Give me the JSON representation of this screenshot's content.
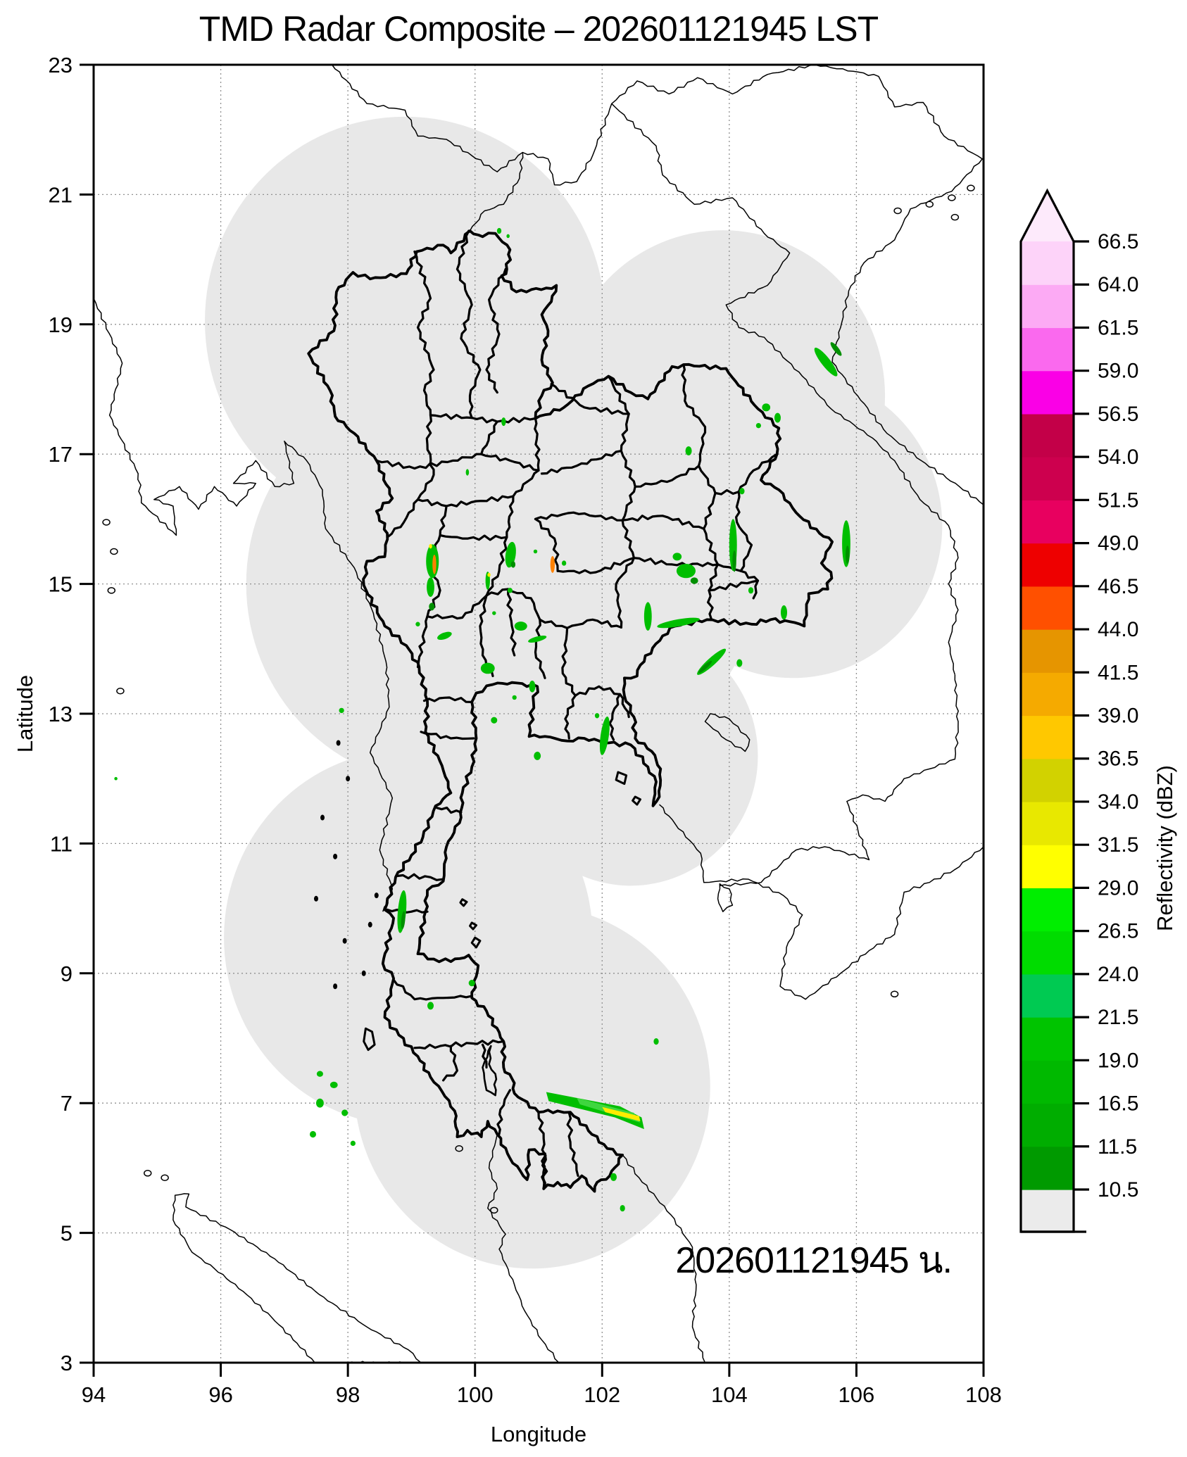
{
  "title": "TMD Radar Composite – 202601121945 LST",
  "timestamp_annotation": "202601121945 น.",
  "axes": {
    "xlabel": "Longitude",
    "ylabel": "Latitude",
    "xlim": [
      94,
      108
    ],
    "ylim": [
      3,
      23
    ],
    "x_ticks": [
      94,
      96,
      98,
      100,
      102,
      104,
      106,
      108
    ],
    "y_ticks": [
      3,
      5,
      7,
      9,
      11,
      13,
      15,
      17,
      19,
      21,
      23
    ],
    "grid_style": "dashed"
  },
  "colorbar": {
    "label": "Reflectivity (dBZ)",
    "ticks": [
      10.5,
      11.5,
      16.5,
      19.0,
      21.5,
      24.0,
      26.5,
      29.0,
      31.5,
      34.0,
      36.5,
      39.0,
      41.5,
      44.0,
      46.5,
      49.0,
      51.5,
      54.0,
      56.5,
      59.0,
      61.5,
      64.0,
      66.5
    ],
    "segment_colors_bottom_to_top": [
      "#ebebeb",
      "#009a00",
      "#00ad00",
      "#00b900",
      "#00c400",
      "#00ca52",
      "#00dc00",
      "#00ee00",
      "#ffff00",
      "#e8e800",
      "#d2d200",
      "#ffc800",
      "#f5aa00",
      "#e69500",
      "#ff5000",
      "#ee0000",
      "#e8005f",
      "#cd004e",
      "#c30048",
      "#fa00e6",
      "#fa69ee",
      "#fcaaf4",
      "#fdd3f9"
    ],
    "arrow_color": "#fdeafb"
  },
  "chart_data": {
    "type": "radar-composite-map",
    "title": "TMD Radar Composite – 202601121945 LST",
    "xlabel": "Longitude",
    "ylabel": "Latitude",
    "xlim": [
      94,
      108
    ],
    "ylim": [
      3,
      23
    ],
    "colorbar_label": "Reflectivity (dBZ)",
    "coverage_color": "#e8e8e8",
    "echo_colors": {
      "g": "#00be00",
      "d": "#008f00",
      "l": "#3fd63f",
      "y": "#ffec00",
      "o": "#ff8200"
    },
    "echo_dbz": {
      "g": 20,
      "d": 12,
      "l": 24,
      "y": 30,
      "o": 42
    },
    "coverage_circles_lon_lat_rdeg": [
      [
        98.9,
        19.05,
        3.15
      ],
      [
        103.9,
        17.9,
        2.55
      ],
      [
        105.0,
        15.9,
        2.35
      ],
      [
        99.5,
        15.0,
        3.1
      ],
      [
        102.3,
        14.75,
        2.05
      ],
      [
        100.4,
        12.9,
        2.35
      ],
      [
        102.45,
        12.35,
        2.0
      ],
      [
        98.95,
        9.55,
        2.9
      ],
      [
        100.9,
        7.25,
        2.8
      ]
    ],
    "echoes_lon_lat_w_h_rot_color": [
      [
        105.52,
        18.42,
        0.14,
        0.55,
        -38,
        "g"
      ],
      [
        105.68,
        18.62,
        0.08,
        0.26,
        -38,
        "d"
      ],
      [
        104.58,
        17.72,
        0.13,
        0.12,
        0,
        "g"
      ],
      [
        104.76,
        17.56,
        0.1,
        0.15,
        0,
        "g"
      ],
      [
        104.46,
        17.44,
        0.08,
        0.08,
        0,
        "g"
      ],
      [
        103.36,
        17.05,
        0.1,
        0.14,
        0,
        "g"
      ],
      [
        104.2,
        16.43,
        0.08,
        0.1,
        0,
        "g"
      ],
      [
        100.45,
        17.5,
        0.07,
        0.13,
        0,
        "g"
      ],
      [
        99.88,
        16.72,
        0.05,
        0.1,
        0,
        "g"
      ],
      [
        100.38,
        20.44,
        0.07,
        0.09,
        0,
        "g"
      ],
      [
        100.52,
        20.36,
        0.05,
        0.06,
        0,
        "g"
      ],
      [
        105.84,
        15.62,
        0.13,
        0.72,
        0,
        "g"
      ],
      [
        105.86,
        15.45,
        0.06,
        0.28,
        0,
        "d"
      ],
      [
        104.06,
        15.6,
        0.12,
        0.8,
        0,
        "g"
      ],
      [
        104.08,
        15.35,
        0.06,
        0.33,
        0,
        "d"
      ],
      [
        103.32,
        15.2,
        0.3,
        0.22,
        0,
        "g"
      ],
      [
        103.18,
        15.42,
        0.14,
        0.12,
        0,
        "g"
      ],
      [
        103.45,
        15.05,
        0.12,
        0.1,
        0,
        "d"
      ],
      [
        104.86,
        14.56,
        0.1,
        0.22,
        0,
        "g"
      ],
      [
        104.34,
        14.9,
        0.08,
        0.1,
        0,
        "g"
      ],
      [
        102.72,
        14.5,
        0.12,
        0.44,
        0,
        "g"
      ],
      [
        103.2,
        14.4,
        0.68,
        0.11,
        -10,
        "g"
      ],
      [
        103.72,
        13.8,
        0.6,
        0.12,
        -42,
        "g"
      ],
      [
        103.62,
        13.72,
        0.28,
        0.06,
        -42,
        "d"
      ],
      [
        104.16,
        13.78,
        0.09,
        0.12,
        0,
        "g"
      ],
      [
        102.04,
        12.66,
        0.13,
        0.6,
        8,
        "g"
      ],
      [
        101.92,
        12.97,
        0.07,
        0.08,
        0,
        "g"
      ],
      [
        99.33,
        15.35,
        0.2,
        0.52,
        0,
        "g"
      ],
      [
        99.36,
        15.3,
        0.06,
        0.3,
        0,
        "o"
      ],
      [
        99.3,
        15.58,
        0.05,
        0.07,
        0,
        "y"
      ],
      [
        99.3,
        14.95,
        0.12,
        0.3,
        0,
        "g"
      ],
      [
        99.32,
        14.65,
        0.09,
        0.12,
        0,
        "d"
      ],
      [
        100.56,
        15.45,
        0.16,
        0.4,
        8,
        "g"
      ],
      [
        100.6,
        15.3,
        0.07,
        0.1,
        0,
        "d"
      ],
      [
        100.2,
        15.05,
        0.07,
        0.28,
        0,
        "g"
      ],
      [
        100.22,
        15.14,
        0.05,
        0.06,
        0,
        "y"
      ],
      [
        101.22,
        15.3,
        0.07,
        0.26,
        0,
        "o"
      ],
      [
        101.4,
        15.32,
        0.07,
        0.08,
        0,
        "g"
      ],
      [
        100.95,
        15.5,
        0.06,
        0.06,
        0,
        "g"
      ],
      [
        100.72,
        14.35,
        0.2,
        0.14,
        0,
        "g"
      ],
      [
        100.98,
        14.15,
        0.3,
        0.08,
        -15,
        "g"
      ],
      [
        99.52,
        14.2,
        0.24,
        0.1,
        -20,
        "g"
      ],
      [
        99.1,
        14.38,
        0.07,
        0.07,
        0,
        "g"
      ],
      [
        100.2,
        13.7,
        0.22,
        0.17,
        0,
        "g"
      ],
      [
        100.9,
        13.42,
        0.1,
        0.18,
        0,
        "g"
      ],
      [
        100.62,
        13.25,
        0.07,
        0.07,
        0,
        "g"
      ],
      [
        100.3,
        12.9,
        0.1,
        0.1,
        0,
        "g"
      ],
      [
        100.98,
        12.35,
        0.11,
        0.13,
        0,
        "g"
      ],
      [
        97.9,
        13.05,
        0.08,
        0.08,
        0,
        "g"
      ],
      [
        94.35,
        12.0,
        0.05,
        0.05,
        0,
        "g"
      ],
      [
        98.85,
        9.95,
        0.13,
        0.66,
        5,
        "g"
      ],
      [
        98.87,
        9.82,
        0.06,
        0.28,
        5,
        "d"
      ],
      [
        99.95,
        8.85,
        0.1,
        0.1,
        0,
        "g"
      ],
      [
        99.3,
        8.5,
        0.1,
        0.12,
        0,
        "g"
      ],
      [
        97.56,
        7.45,
        0.1,
        0.09,
        0,
        "g"
      ],
      [
        97.78,
        7.28,
        0.12,
        0.1,
        0,
        "g"
      ],
      [
        97.56,
        7.0,
        0.12,
        0.14,
        0,
        "g"
      ],
      [
        97.95,
        6.85,
        0.1,
        0.1,
        0,
        "g"
      ],
      [
        97.45,
        6.52,
        0.1,
        0.1,
        0,
        "g"
      ],
      [
        98.08,
        6.38,
        0.08,
        0.08,
        0,
        "g"
      ],
      [
        102.85,
        7.95,
        0.08,
        0.1,
        0,
        "g"
      ],
      [
        102.18,
        5.86,
        0.1,
        0.12,
        0,
        "g"
      ],
      [
        102.32,
        5.38,
        0.08,
        0.1,
        0,
        "g"
      ],
      [
        100.55,
        14.9,
        0.08,
        0.08,
        0,
        "g"
      ],
      [
        100.3,
        14.55,
        0.06,
        0.06,
        0,
        "g"
      ]
    ],
    "echo_polygons": [
      {
        "color": "g",
        "points": [
          [
            101.12,
            7.17
          ],
          [
            102.28,
            6.95
          ],
          [
            102.62,
            6.78
          ],
          [
            102.66,
            6.6
          ],
          [
            102.2,
            6.78
          ],
          [
            101.16,
            7.03
          ]
        ]
      },
      {
        "color": "l",
        "points": [
          [
            101.6,
            7.08
          ],
          [
            102.5,
            6.85
          ],
          [
            102.6,
            6.7
          ],
          [
            101.65,
            6.98
          ]
        ]
      },
      {
        "color": "y",
        "points": [
          [
            102.0,
            6.94
          ],
          [
            102.58,
            6.8
          ],
          [
            102.6,
            6.72
          ],
          [
            102.05,
            6.86
          ]
        ]
      }
    ]
  }
}
